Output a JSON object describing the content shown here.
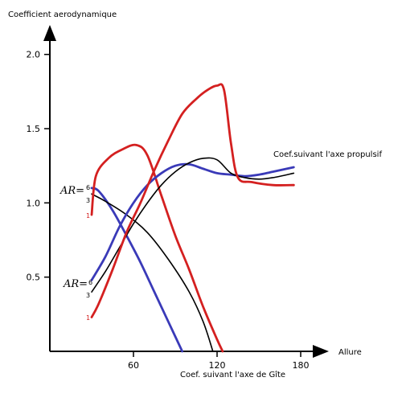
{
  "chart_data": {
    "type": "line",
    "ylabel": "Coefficient aerodynamique",
    "xlabel": "Allure",
    "x_group_title": "Coef. suivant l'axe de Gîte",
    "y_group_title": "Coef.suivant l'axe propulsif",
    "xlim": [
      0,
      195
    ],
    "ylim": [
      0,
      2.15
    ],
    "x_ticks": [
      "60",
      "120",
      "180"
    ],
    "y_ticks": [
      "2.0",
      "1.5",
      "1.0",
      "0.5"
    ],
    "grid": false,
    "ar_prefix": "AR=",
    "colors": {
      "ar6": "#3a3ab8",
      "ar3": "#000000",
      "ar1": "#d42020"
    },
    "series": [
      {
        "key": "heel_ar6",
        "ar": "6",
        "group": "gite",
        "color": "#3a3ab8",
        "points": [
          [
            30,
            1.1
          ],
          [
            35,
            1.08
          ],
          [
            45,
            0.95
          ],
          [
            55,
            0.78
          ],
          [
            65,
            0.6
          ],
          [
            75,
            0.4
          ],
          [
            85,
            0.2
          ],
          [
            95,
            0.0
          ]
        ]
      },
      {
        "key": "heel_ar3",
        "ar": "3",
        "group": "gite",
        "color": "#000000",
        "points": [
          [
            30,
            1.06
          ],
          [
            40,
            1.01
          ],
          [
            55,
            0.92
          ],
          [
            70,
            0.8
          ],
          [
            85,
            0.62
          ],
          [
            100,
            0.4
          ],
          [
            110,
            0.2
          ],
          [
            117,
            0.0
          ]
        ]
      },
      {
        "key": "heel_ar1",
        "ar": "1",
        "group": "gite",
        "color": "#d42020",
        "points": [
          [
            30,
            0.92
          ],
          [
            33,
            1.18
          ],
          [
            42,
            1.3
          ],
          [
            52,
            1.36
          ],
          [
            62,
            1.39
          ],
          [
            70,
            1.32
          ],
          [
            80,
            1.05
          ],
          [
            90,
            0.78
          ],
          [
            100,
            0.55
          ],
          [
            110,
            0.3
          ],
          [
            120,
            0.08
          ],
          [
            124,
            0.0
          ]
        ]
      },
      {
        "key": "prop_ar6",
        "ar": "6",
        "group": "propulsif",
        "color": "#3a3ab8",
        "points": [
          [
            30,
            0.48
          ],
          [
            40,
            0.64
          ],
          [
            50,
            0.84
          ],
          [
            60,
            1.0
          ],
          [
            70,
            1.12
          ],
          [
            80,
            1.2
          ],
          [
            90,
            1.25
          ],
          [
            100,
            1.26
          ],
          [
            110,
            1.23
          ],
          [
            120,
            1.2
          ],
          [
            130,
            1.19
          ],
          [
            140,
            1.18
          ],
          [
            150,
            1.19
          ],
          [
            160,
            1.21
          ],
          [
            175,
            1.24
          ]
        ]
      },
      {
        "key": "prop_ar3",
        "ar": "3",
        "group": "propulsif",
        "color": "#000000",
        "points": [
          [
            30,
            0.4
          ],
          [
            40,
            0.54
          ],
          [
            50,
            0.7
          ],
          [
            60,
            0.86
          ],
          [
            70,
            1.0
          ],
          [
            80,
            1.12
          ],
          [
            90,
            1.21
          ],
          [
            100,
            1.27
          ],
          [
            110,
            1.3
          ],
          [
            120,
            1.29
          ],
          [
            130,
            1.2
          ],
          [
            140,
            1.17
          ],
          [
            150,
            1.16
          ],
          [
            160,
            1.17
          ],
          [
            175,
            1.2
          ]
        ]
      },
      {
        "key": "prop_ar1",
        "ar": "1",
        "group": "propulsif",
        "color": "#d42020",
        "points": [
          [
            30,
            0.23
          ],
          [
            35,
            0.32
          ],
          [
            45,
            0.55
          ],
          [
            55,
            0.8
          ],
          [
            65,
            1.0
          ],
          [
            75,
            1.22
          ],
          [
            85,
            1.42
          ],
          [
            95,
            1.6
          ],
          [
            105,
            1.7
          ],
          [
            113,
            1.76
          ],
          [
            120,
            1.79
          ],
          [
            125,
            1.76
          ],
          [
            130,
            1.4
          ],
          [
            135,
            1.17
          ],
          [
            145,
            1.14
          ],
          [
            160,
            1.12
          ],
          [
            175,
            1.12
          ]
        ]
      }
    ]
  }
}
